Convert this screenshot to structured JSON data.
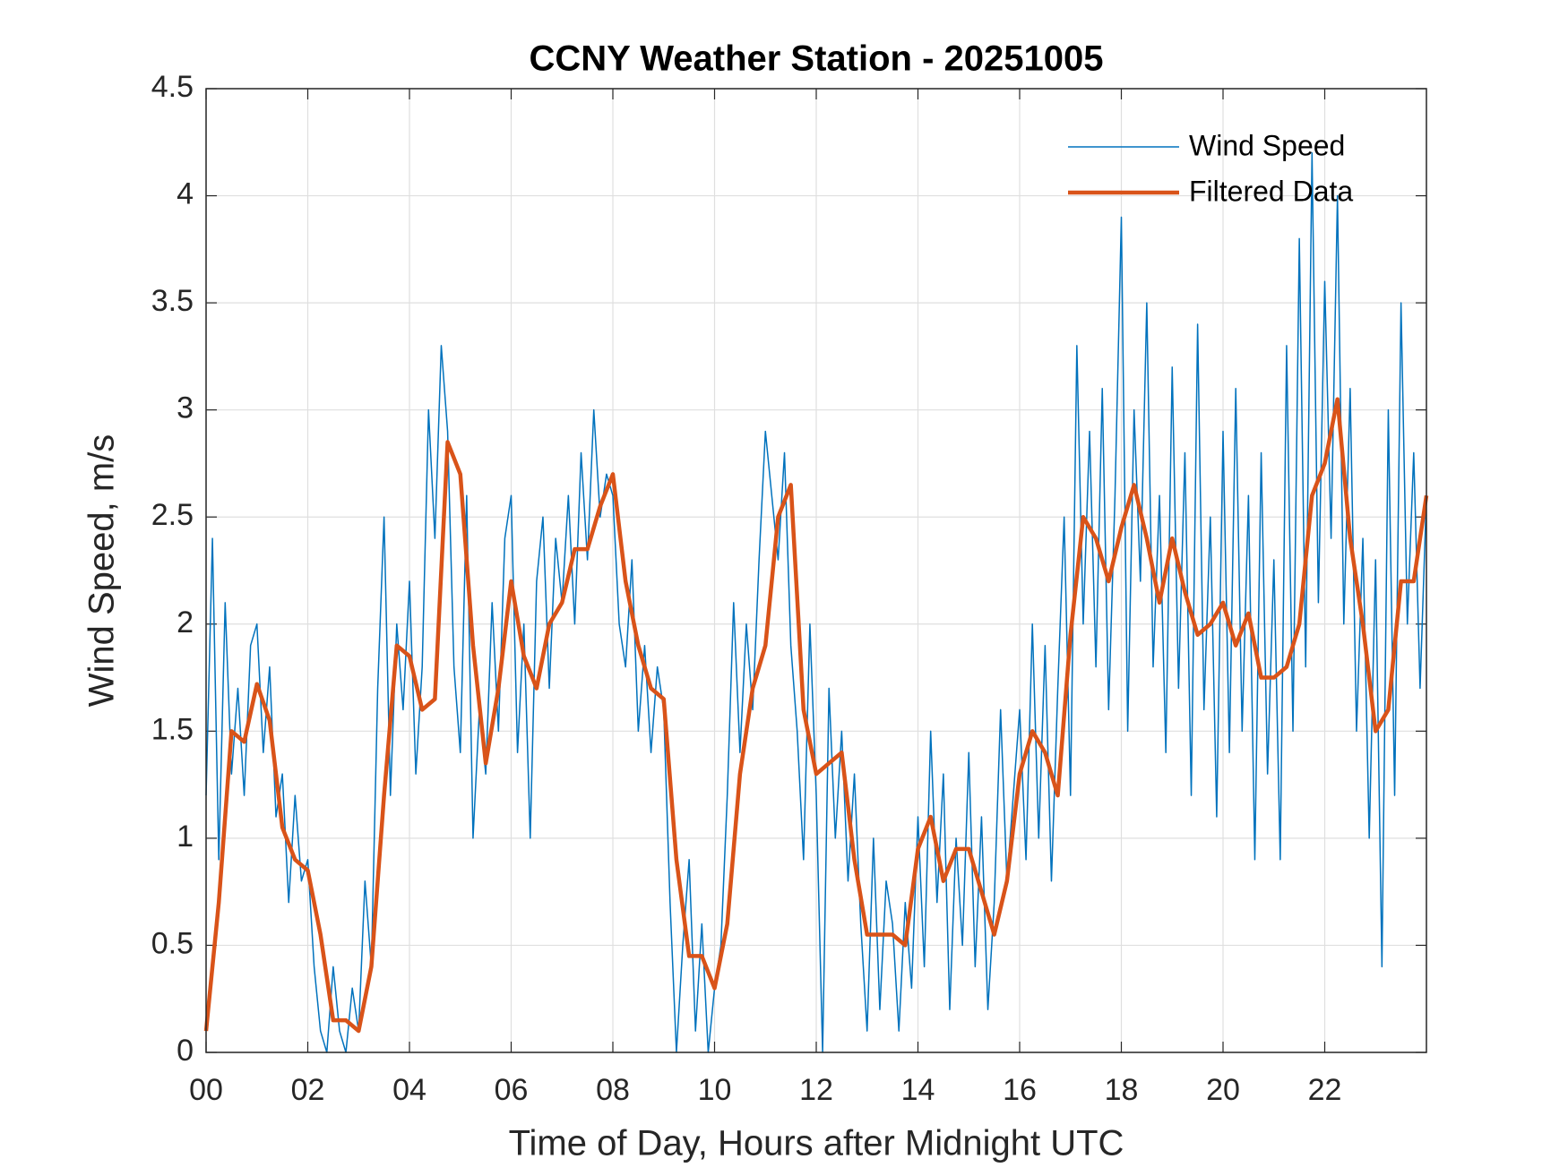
{
  "chart_data": {
    "type": "line",
    "title": "CCNY Weather Station - 20251005",
    "xlabel": "Time of Day, Hours after Midnight UTC",
    "ylabel": "Wind Speed, m/s",
    "xlim": [
      0,
      24
    ],
    "ylim": [
      0,
      4.5
    ],
    "xticks": [
      {
        "value": 0,
        "label": "00"
      },
      {
        "value": 2,
        "label": "02"
      },
      {
        "value": 4,
        "label": "04"
      },
      {
        "value": 6,
        "label": "06"
      },
      {
        "value": 8,
        "label": "08"
      },
      {
        "value": 10,
        "label": "10"
      },
      {
        "value": 12,
        "label": "12"
      },
      {
        "value": 14,
        "label": "14"
      },
      {
        "value": 16,
        "label": "16"
      },
      {
        "value": 18,
        "label": "18"
      },
      {
        "value": 20,
        "label": "20"
      },
      {
        "value": 22,
        "label": "22"
      }
    ],
    "yticks": [
      0,
      0.5,
      1,
      1.5,
      2,
      2.5,
      3,
      3.5,
      4,
      4.5
    ],
    "grid": true,
    "legend": "northeast",
    "series": [
      {
        "name": "Wind Speed",
        "color": "#0072BD",
        "width": 1.5,
        "x": [
          0,
          0.125,
          0.25,
          0.375,
          0.5,
          0.625,
          0.75,
          0.875,
          1,
          1.125,
          1.25,
          1.375,
          1.5,
          1.625,
          1.75,
          1.875,
          2,
          2.125,
          2.25,
          2.375,
          2.5,
          2.625,
          2.75,
          2.875,
          3,
          3.125,
          3.25,
          3.375,
          3.5,
          3.625,
          3.75,
          3.875,
          4,
          4.125,
          4.25,
          4.375,
          4.5,
          4.625,
          4.75,
          4.875,
          5,
          5.125,
          5.25,
          5.375,
          5.5,
          5.625,
          5.75,
          5.875,
          6,
          6.125,
          6.25,
          6.375,
          6.5,
          6.625,
          6.75,
          6.875,
          7,
          7.125,
          7.25,
          7.375,
          7.5,
          7.625,
          7.75,
          7.875,
          8,
          8.125,
          8.25,
          8.375,
          8.5,
          8.625,
          8.75,
          8.875,
          9,
          9.125,
          9.25,
          9.375,
          9.5,
          9.625,
          9.75,
          9.875,
          10,
          10.125,
          10.25,
          10.375,
          10.5,
          10.625,
          10.75,
          10.875,
          11,
          11.125,
          11.25,
          11.375,
          11.5,
          11.625,
          11.75,
          11.875,
          12,
          12.125,
          12.25,
          12.375,
          12.5,
          12.625,
          12.75,
          12.875,
          13,
          13.125,
          13.25,
          13.375,
          13.5,
          13.625,
          13.75,
          13.875,
          14,
          14.125,
          14.25,
          14.375,
          14.5,
          14.625,
          14.75,
          14.875,
          15,
          15.125,
          15.25,
          15.375,
          15.5,
          15.625,
          15.75,
          15.875,
          16,
          16.125,
          16.25,
          16.375,
          16.5,
          16.625,
          16.75,
          16.875,
          17,
          17.125,
          17.25,
          17.375,
          17.5,
          17.625,
          17.75,
          17.875,
          18,
          18.125,
          18.25,
          18.375,
          18.5,
          18.625,
          18.75,
          18.875,
          19,
          19.125,
          19.25,
          19.375,
          19.5,
          19.625,
          19.75,
          19.875,
          20,
          20.125,
          20.25,
          20.375,
          20.5,
          20.625,
          20.75,
          20.875,
          21,
          21.125,
          21.25,
          21.375,
          21.5,
          21.625,
          21.75,
          21.875,
          22,
          22.125,
          22.25,
          22.375,
          22.5,
          22.625,
          22.75,
          22.875,
          23,
          23.125,
          23.25,
          23.375,
          23.5,
          23.625,
          23.75,
          23.875,
          24
        ],
        "values": [
          1.2,
          2.4,
          0.9,
          2.1,
          1.3,
          1.7,
          1.2,
          1.9,
          2.0,
          1.4,
          1.8,
          1.1,
          1.3,
          0.7,
          1.2,
          0.8,
          0.9,
          0.4,
          0.1,
          0.0,
          0.4,
          0.1,
          0.0,
          0.3,
          0.1,
          0.8,
          0.4,
          1.7,
          2.5,
          1.2,
          2.0,
          1.6,
          2.2,
          1.3,
          1.8,
          3.0,
          2.4,
          3.3,
          2.9,
          1.8,
          1.4,
          2.6,
          1.0,
          1.6,
          1.3,
          2.1,
          1.5,
          2.4,
          2.6,
          1.4,
          2.0,
          1.0,
          2.2,
          2.5,
          1.7,
          2.4,
          2.1,
          2.6,
          2.0,
          2.8,
          2.3,
          3.0,
          2.5,
          2.7,
          2.6,
          2.0,
          1.8,
          2.3,
          1.5,
          1.9,
          1.4,
          1.8,
          1.6,
          0.7,
          0.0,
          0.5,
          0.9,
          0.1,
          0.6,
          0.0,
          0.3,
          0.5,
          1.2,
          2.1,
          1.4,
          2.0,
          1.6,
          2.3,
          2.9,
          2.6,
          2.3,
          2.8,
          1.9,
          1.5,
          0.9,
          2.0,
          1.2,
          0.0,
          1.7,
          1.0,
          1.5,
          0.8,
          1.3,
          0.6,
          0.1,
          1.0,
          0.2,
          0.8,
          0.6,
          0.1,
          0.7,
          0.3,
          1.1,
          0.4,
          1.5,
          0.7,
          1.3,
          0.2,
          1.0,
          0.5,
          1.4,
          0.4,
          1.1,
          0.2,
          0.7,
          1.6,
          0.8,
          1.2,
          1.6,
          0.9,
          2.0,
          1.0,
          1.9,
          0.8,
          1.7,
          2.5,
          1.2,
          3.3,
          2.0,
          2.9,
          1.8,
          3.1,
          1.6,
          2.6,
          3.9,
          1.5,
          3.0,
          2.2,
          3.5,
          1.8,
          2.6,
          1.4,
          3.2,
          1.7,
          2.8,
          1.2,
          3.4,
          1.6,
          2.5,
          1.1,
          2.9,
          1.4,
          3.1,
          1.5,
          2.6,
          0.9,
          2.8,
          1.3,
          2.3,
          0.9,
          3.3,
          1.5,
          3.8,
          1.8,
          4.2,
          2.1,
          3.6,
          2.4,
          4.0,
          2.0,
          3.1,
          1.5,
          2.4,
          1.0,
          2.3,
          0.4,
          3.0,
          1.2,
          3.5,
          2.0,
          2.8,
          1.7,
          2.6
        ]
      },
      {
        "name": "Filtered Data",
        "color": "#D95319",
        "width": 4.5,
        "x": [
          0,
          0.25,
          0.5,
          0.75,
          1,
          1.25,
          1.5,
          1.75,
          2,
          2.25,
          2.5,
          2.75,
          3,
          3.25,
          3.5,
          3.75,
          4,
          4.25,
          4.5,
          4.75,
          5,
          5.25,
          5.5,
          5.75,
          6,
          6.25,
          6.5,
          6.75,
          7,
          7.25,
          7.5,
          7.75,
          8,
          8.25,
          8.5,
          8.75,
          9,
          9.25,
          9.5,
          9.75,
          10,
          10.25,
          10.5,
          10.75,
          11,
          11.25,
          11.5,
          11.75,
          12,
          12.25,
          12.5,
          12.75,
          13,
          13.25,
          13.5,
          13.75,
          14,
          14.25,
          14.5,
          14.75,
          15,
          15.25,
          15.5,
          15.75,
          16,
          16.25,
          16.5,
          16.75,
          17,
          17.25,
          17.5,
          17.75,
          18,
          18.25,
          18.5,
          18.75,
          19,
          19.25,
          19.5,
          19.75,
          20,
          20.25,
          20.5,
          20.75,
          21,
          21.25,
          21.5,
          21.75,
          22,
          22.25,
          22.5,
          22.75,
          23,
          23.25,
          23.5,
          23.75,
          24
        ],
        "values": [
          0.1,
          0.7,
          1.5,
          1.45,
          1.72,
          1.55,
          1.05,
          0.9,
          0.85,
          0.55,
          0.15,
          0.15,
          0.1,
          0.4,
          1.2,
          1.9,
          1.85,
          1.6,
          1.65,
          2.85,
          2.7,
          1.9,
          1.35,
          1.7,
          2.2,
          1.85,
          1.7,
          2.0,
          2.1,
          2.35,
          2.35,
          2.55,
          2.7,
          2.2,
          1.9,
          1.7,
          1.65,
          0.9,
          0.45,
          0.45,
          0.3,
          0.6,
          1.3,
          1.7,
          1.9,
          2.5,
          2.65,
          1.6,
          1.3,
          1.35,
          1.4,
          0.9,
          0.55,
          0.55,
          0.55,
          0.5,
          0.95,
          1.1,
          0.8,
          0.95,
          0.95,
          0.75,
          0.55,
          0.8,
          1.3,
          1.5,
          1.4,
          1.2,
          1.95,
          2.5,
          2.4,
          2.2,
          2.45,
          2.65,
          2.4,
          2.1,
          2.4,
          2.15,
          1.95,
          2.0,
          2.1,
          1.9,
          2.05,
          1.75,
          1.75,
          1.8,
          2.0,
          2.6,
          2.75,
          3.05,
          2.4,
          2.0,
          1.5,
          1.6,
          2.2,
          2.2,
          2.6
        ]
      }
    ]
  }
}
